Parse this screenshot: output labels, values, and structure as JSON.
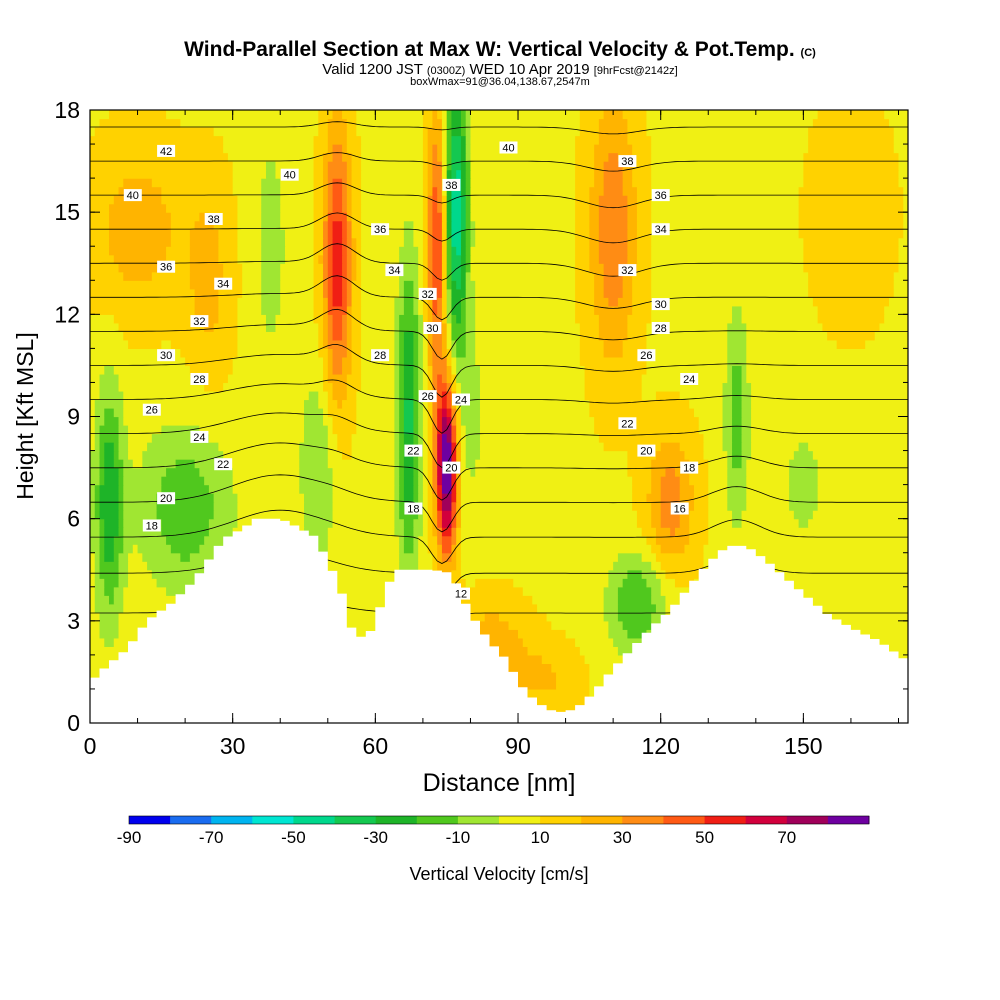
{
  "header": {
    "title": "Wind-Parallel Section at Max W: Vertical Velocity & Pot.Temp.",
    "title_unit": "(C)",
    "valid_prefix": "Valid 1200 JST",
    "valid_utc": "(0300Z)",
    "valid_date": "WED 10 Apr 2019",
    "forecast": "[9hrFcst@2142z]",
    "boxwmax": "boxWmax=91@36.04,138.67,2547m"
  },
  "chart_data": {
    "type": "heatmap",
    "title": "Wind-Parallel Section at Max W: Vertical Velocity & Pot.Temp.",
    "xlabel": "Distance [nm]",
    "ylabel": "Height [Kft MSL]",
    "xlim": [
      0,
      172
    ],
    "ylim": [
      0,
      18
    ],
    "x_ticks": [
      0,
      30,
      60,
      90,
      120,
      150
    ],
    "y_ticks": [
      0,
      3,
      6,
      9,
      12,
      15,
      18
    ],
    "colorbar": {
      "label": "Vertical Velocity [cm/s]",
      "placement": "bottom",
      "bounds": [
        -90,
        -80,
        -70,
        -60,
        -50,
        -40,
        -30,
        -20,
        -10,
        0,
        10,
        20,
        30,
        40,
        50,
        60,
        70,
        80
      ],
      "colors": [
        "#0000ee",
        "#1a6cf0",
        "#00b4f0",
        "#00e6d2",
        "#00d88c",
        "#14c850",
        "#1eb428",
        "#50c81e",
        "#a0e632",
        "#f0f014",
        "#ffd200",
        "#ffb400",
        "#ff8c14",
        "#ff5a14",
        "#f01e14",
        "#d2003c",
        "#a0005a",
        "#6e00a0"
      ],
      "tick_labels": [
        "-90",
        "-70",
        "-50",
        "-30",
        "-10",
        "10",
        "30",
        "50",
        "70"
      ]
    },
    "terrain": {
      "x": [
        0,
        3,
        8,
        12,
        17,
        22,
        25,
        28,
        32,
        35,
        40,
        43,
        47,
        50,
        53,
        55,
        58,
        60,
        62,
        64,
        66,
        68,
        72,
        76,
        80,
        84,
        88,
        90,
        94,
        98,
        102,
        106,
        110,
        114,
        118,
        122,
        126,
        130,
        134,
        138,
        142,
        146,
        150,
        155,
        160,
        166,
        170,
        172
      ],
      "height_kft": [
        1.2,
        1.6,
        2.2,
        3.0,
        3.5,
        4.2,
        4.8,
        5.4,
        5.7,
        6.0,
        6.0,
        5.8,
        5.5,
        4.8,
        3.8,
        2.8,
        2.4,
        3.0,
        3.8,
        4.5,
        4.5,
        4.5,
        4.5,
        4.4,
        3.2,
        2.4,
        1.8,
        1.2,
        0.6,
        0.3,
        0.4,
        0.9,
        1.6,
        2.2,
        2.8,
        3.3,
        4.0,
        4.7,
        5.2,
        5.2,
        4.8,
        4.3,
        3.8,
        3.2,
        2.8,
        2.4,
        2.0,
        1.8
      ]
    },
    "vertical_velocity_features": [
      {
        "x": 4,
        "z": 6.5,
        "half_width_nm": 3,
        "half_depth_kft": 3.5,
        "value": -35
      },
      {
        "x": 20,
        "z": 6.3,
        "half_width_nm": 10,
        "half_depth_kft": 2.5,
        "value": -25
      },
      {
        "x": 38,
        "z": 14,
        "half_width_nm": 4,
        "half_depth_kft": 4,
        "value": -12
      },
      {
        "x": 48,
        "z": 7.5,
        "half_width_nm": 4,
        "half_depth_kft": 3,
        "value": -18
      },
      {
        "x": 52,
        "z": 13.5,
        "half_width_nm": 3,
        "half_depth_kft": 4,
        "value": 48
      },
      {
        "x": 67,
        "z": 9,
        "half_width_nm": 2.5,
        "half_depth_kft": 4.5,
        "value": -40
      },
      {
        "x": 75,
        "z": 7.5,
        "half_width_nm": 2.2,
        "half_depth_kft": 2.5,
        "value": 85
      },
      {
        "x": 73,
        "z": 14,
        "half_width_nm": 2,
        "half_depth_kft": 4,
        "value": 45
      },
      {
        "x": 77,
        "z": 15,
        "half_width_nm": 2.5,
        "half_depth_kft": 4,
        "value": -55
      },
      {
        "x": 80,
        "z": 9,
        "half_width_nm": 3,
        "half_depth_kft": 3,
        "value": -12
      },
      {
        "x": 84,
        "z": 2,
        "half_width_nm": 8,
        "half_depth_kft": 1.5,
        "value": 22
      },
      {
        "x": 96,
        "z": 1.3,
        "half_width_nm": 7,
        "half_depth_kft": 1,
        "value": 12
      },
      {
        "x": 110,
        "z": 14.5,
        "half_width_nm": 5,
        "half_depth_kft": 4,
        "value": 30
      },
      {
        "x": 122,
        "z": 6.5,
        "half_width_nm": 5,
        "half_depth_kft": 2,
        "value": 28
      },
      {
        "x": 115,
        "z": 3.5,
        "half_width_nm": 6,
        "half_depth_kft": 1.5,
        "value": -28
      },
      {
        "x": 136,
        "z": 9,
        "half_width_nm": 2.5,
        "half_depth_kft": 3,
        "value": -25
      },
      {
        "x": 150,
        "z": 7,
        "half_width_nm": 5,
        "half_depth_kft": 2,
        "value": -12
      },
      {
        "x": 10,
        "z": 14.5,
        "half_width_nm": 10,
        "half_depth_kft": 2.5,
        "value": 18
      },
      {
        "x": 25,
        "z": 13,
        "half_width_nm": 5,
        "half_depth_kft": 3,
        "value": 15
      },
      {
        "x": 160,
        "z": 15,
        "half_width_nm": 8,
        "half_depth_kft": 3,
        "value": 12
      }
    ],
    "isentrope_levels_C": [
      10,
      12,
      14,
      16,
      18,
      20,
      22,
      24,
      26,
      28,
      30,
      32,
      34,
      36,
      38,
      40,
      42,
      44
    ],
    "isentrope_labels": [
      {
        "text": "42",
        "x": 16,
        "z": 16.8
      },
      {
        "text": "40",
        "x": 9,
        "z": 15.5
      },
      {
        "text": "38",
        "x": 26,
        "z": 14.8
      },
      {
        "text": "36",
        "x": 16,
        "z": 13.4
      },
      {
        "text": "34",
        "x": 28,
        "z": 12.9
      },
      {
        "text": "32",
        "x": 23,
        "z": 11.8
      },
      {
        "text": "30",
        "x": 16,
        "z": 10.8
      },
      {
        "text": "28",
        "x": 23,
        "z": 10.1
      },
      {
        "text": "26",
        "x": 13,
        "z": 9.2
      },
      {
        "text": "24",
        "x": 23,
        "z": 8.4
      },
      {
        "text": "22",
        "x": 28,
        "z": 7.6
      },
      {
        "text": "20",
        "x": 16,
        "z": 6.6
      },
      {
        "text": "18",
        "x": 13,
        "z": 5.8
      },
      {
        "text": "40",
        "x": 42,
        "z": 16.1
      },
      {
        "text": "36",
        "x": 61,
        "z": 14.5
      },
      {
        "text": "34",
        "x": 64,
        "z": 13.3
      },
      {
        "text": "32",
        "x": 71,
        "z": 12.6
      },
      {
        "text": "30",
        "x": 72,
        "z": 11.6
      },
      {
        "text": "28",
        "x": 61,
        "z": 10.8
      },
      {
        "text": "26",
        "x": 71,
        "z": 9.6
      },
      {
        "text": "24",
        "x": 78,
        "z": 9.5
      },
      {
        "text": "22",
        "x": 68,
        "z": 8.0
      },
      {
        "text": "20",
        "x": 76,
        "z": 7.5
      },
      {
        "text": "18",
        "x": 68,
        "z": 6.3
      },
      {
        "text": "12",
        "x": 78,
        "z": 3.8
      },
      {
        "text": "38",
        "x": 76,
        "z": 15.8
      },
      {
        "text": "40",
        "x": 88,
        "z": 16.9
      },
      {
        "text": "38",
        "x": 113,
        "z": 16.5
      },
      {
        "text": "36",
        "x": 120,
        "z": 15.5
      },
      {
        "text": "34",
        "x": 120,
        "z": 14.5
      },
      {
        "text": "32",
        "x": 113,
        "z": 13.3
      },
      {
        "text": "30",
        "x": 120,
        "z": 12.3
      },
      {
        "text": "28",
        "x": 120,
        "z": 11.6
      },
      {
        "text": "26",
        "x": 117,
        "z": 10.8
      },
      {
        "text": "24",
        "x": 126,
        "z": 10.1
      },
      {
        "text": "22",
        "x": 113,
        "z": 8.8
      },
      {
        "text": "20",
        "x": 117,
        "z": 8.0
      },
      {
        "text": "18",
        "x": 126,
        "z": 7.5
      },
      {
        "text": "16",
        "x": 124,
        "z": 6.3
      }
    ],
    "grid": false
  }
}
